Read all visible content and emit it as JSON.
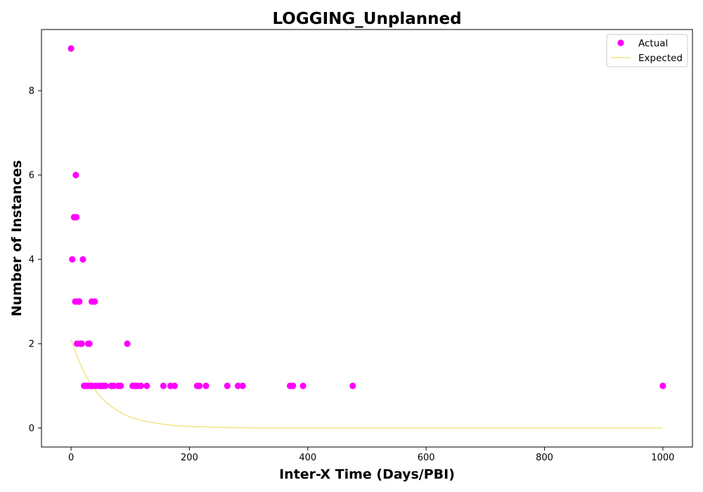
{
  "chart_data": {
    "type": "scatter",
    "title": "LOGGING_Unplanned",
    "xlabel": "Inter-X Time (Days/PBI)",
    "ylabel": "Number of Instances",
    "xlim": [
      -50,
      1050
    ],
    "ylim": [
      -0.45,
      9.45
    ],
    "xticks": [
      0,
      200,
      400,
      600,
      800,
      1000
    ],
    "yticks": [
      0,
      2,
      4,
      6,
      8
    ],
    "grid": false,
    "legend_position": "top-right",
    "series": [
      {
        "name": "Actual",
        "kind": "scatter",
        "color": "#ff00ff",
        "points": [
          [
            0,
            9
          ],
          [
            2,
            4
          ],
          [
            5,
            5
          ],
          [
            7,
            3
          ],
          [
            8,
            6
          ],
          [
            9,
            5
          ],
          [
            10,
            2
          ],
          [
            12,
            3
          ],
          [
            14,
            3
          ],
          [
            16,
            2
          ],
          [
            18,
            2
          ],
          [
            20,
            4
          ],
          [
            22,
            1
          ],
          [
            24,
            1
          ],
          [
            28,
            1
          ],
          [
            29,
            2
          ],
          [
            31,
            2
          ],
          [
            33,
            1
          ],
          [
            35,
            3
          ],
          [
            36,
            1
          ],
          [
            40,
            3
          ],
          [
            42,
            1
          ],
          [
            48,
            1
          ],
          [
            52,
            1
          ],
          [
            55,
            1
          ],
          [
            58,
            1
          ],
          [
            68,
            1
          ],
          [
            72,
            1
          ],
          [
            80,
            1
          ],
          [
            84,
            1
          ],
          [
            95,
            2
          ],
          [
            104,
            1
          ],
          [
            108,
            1
          ],
          [
            112,
            1
          ],
          [
            118,
            1
          ],
          [
            128,
            1
          ],
          [
            156,
            1
          ],
          [
            168,
            1
          ],
          [
            175,
            1
          ],
          [
            213,
            1
          ],
          [
            217,
            1
          ],
          [
            228,
            1
          ],
          [
            264,
            1
          ],
          [
            282,
            1
          ],
          [
            290,
            1
          ],
          [
            370,
            1
          ],
          [
            375,
            1
          ],
          [
            392,
            1
          ],
          [
            476,
            1
          ],
          [
            1000,
            1
          ]
        ]
      },
      {
        "name": "Expected",
        "kind": "line",
        "color": "#f0e68c",
        "points": [
          [
            0,
            2.1
          ],
          [
            10,
            1.7
          ],
          [
            20,
            1.38
          ],
          [
            30,
            1.12
          ],
          [
            40,
            0.91
          ],
          [
            50,
            0.74
          ],
          [
            60,
            0.6
          ],
          [
            70,
            0.49
          ],
          [
            80,
            0.4
          ],
          [
            90,
            0.32
          ],
          [
            100,
            0.26
          ],
          [
            125,
            0.16
          ],
          [
            150,
            0.1
          ],
          [
            175,
            0.06
          ],
          [
            200,
            0.04
          ],
          [
            250,
            0.015
          ],
          [
            300,
            0.006
          ],
          [
            400,
            0.001
          ],
          [
            500,
            0
          ],
          [
            1000,
            0
          ]
        ]
      }
    ]
  }
}
